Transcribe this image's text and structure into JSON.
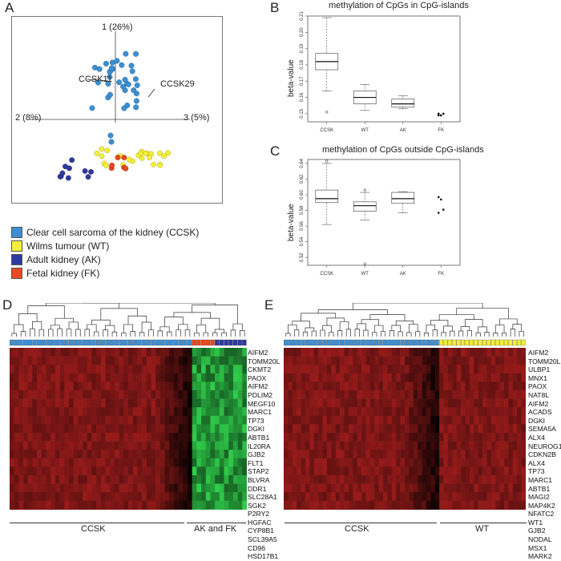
{
  "panels": {
    "a": "A",
    "b": "B",
    "c": "C",
    "d": "D",
    "e": "E"
  },
  "pca": {
    "axis1": "1 (26%)",
    "axis2": "2 (8%)",
    "axis3": "3 (5%)",
    "label_ccsk11": "CCSK11",
    "label_ccsk29": "CCSK29"
  },
  "legend": [
    {
      "label": "Clear cell sarcoma of the kidney (CCSK)",
      "color": "#3d8fd1"
    },
    {
      "label": "Wilms tumour (WT)",
      "color": "#f3ef3a"
    },
    {
      "label": "Adult kidney (AK)",
      "color": "#2e3a9e"
    },
    {
      "label": "Fetal kidney (FK)",
      "color": "#e8491e"
    }
  ],
  "chart_data": [
    {
      "type": "box",
      "title": "methylation of CpGs in CpG-islands",
      "ylabel": "beta-value",
      "categories": [
        "CCSK",
        "WT",
        "AK",
        "FK"
      ],
      "ylim": [
        0.145,
        0.21
      ],
      "yticks": [
        "0.15",
        "0.16",
        "0.17",
        "0.18",
        "0.19",
        "0.20",
        "0.21"
      ],
      "boxes": [
        {
          "min": 0.164,
          "q1": 0.177,
          "median": 0.182,
          "q3": 0.187,
          "max": 0.209,
          "outliers": [
            0.151
          ]
        },
        {
          "min": 0.152,
          "q1": 0.156,
          "median": 0.16,
          "q3": 0.164,
          "max": 0.168,
          "outliers": []
        },
        {
          "min": 0.153,
          "q1": 0.154,
          "median": 0.156,
          "q3": 0.159,
          "max": 0.161,
          "outliers": []
        },
        {
          "points": [
            0.149,
            0.149,
            0.15,
            0.15,
            0.149
          ]
        }
      ]
    },
    {
      "type": "box",
      "title": "methylation of CpGs outside CpG-islands",
      "ylabel": "beta-value",
      "categories": [
        "CCSK",
        "WT",
        "AK",
        "FK"
      ],
      "ylim": [
        0.51,
        0.645
      ],
      "yticks": [
        "0.52",
        "0.54",
        "0.56",
        "0.58",
        "0.60",
        "0.62",
        "0.64"
      ],
      "boxes": [
        {
          "min": 0.562,
          "q1": 0.59,
          "median": 0.595,
          "q3": 0.606,
          "max": 0.64,
          "outliers": [
            0.643
          ]
        },
        {
          "min": 0.568,
          "q1": 0.579,
          "median": 0.586,
          "q3": 0.591,
          "max": 0.603,
          "outliers": [
            0.606,
            0.512
          ]
        },
        {
          "min": 0.577,
          "q1": 0.589,
          "median": 0.595,
          "q3": 0.603,
          "max": 0.604,
          "outliers": []
        },
        {
          "points": [
            0.597,
            0.594,
            0.581,
            0.577
          ]
        }
      ]
    },
    {
      "type": "heatmap",
      "panel": "D",
      "group_labels": [
        "CCSK",
        "AK and FK"
      ],
      "rows": [
        "AIFM2",
        "TOMM20L",
        "CKMT2",
        "PAOX",
        "AIFM2",
        "PDLIM2",
        "MEGF10",
        "MARC1",
        "TP73",
        "DGKI",
        "ABTB1",
        "IL20RA",
        "GJB2",
        "FLT1",
        "STAP2",
        "BLVRA",
        "DDR1",
        "SLC28A1",
        "SGK2",
        "P2RY2",
        "HGFAC",
        "CYP8B1",
        "SCL39A5",
        "CD96",
        "HSD17B1"
      ]
    },
    {
      "type": "heatmap",
      "panel": "E",
      "group_labels": [
        "CCSK",
        "WT"
      ],
      "rows": [
        "AIFM2",
        "TOMM20L",
        "ULBP1",
        "MNX1",
        "PAOX",
        "NAT8L",
        "AIFM2",
        "ACADS",
        "DGKI",
        "SEMA5A",
        "ALX4",
        "NEUROG1",
        "CDKN2B",
        "ALX4",
        "TP73",
        "MARC1",
        "ABTB1",
        "MAGI2",
        "MAP4K2",
        "NFATC2",
        "WT1",
        "GJB2",
        "NODAL",
        "MSX1",
        "MARK2"
      ]
    }
  ],
  "colors": {
    "ccsk": "#3d8fd1",
    "wt": "#f3ef3a",
    "ak": "#2e3a9e",
    "fk": "#e8491e",
    "heat_high": "#a41d1d",
    "heat_low": "#2bd24a"
  }
}
